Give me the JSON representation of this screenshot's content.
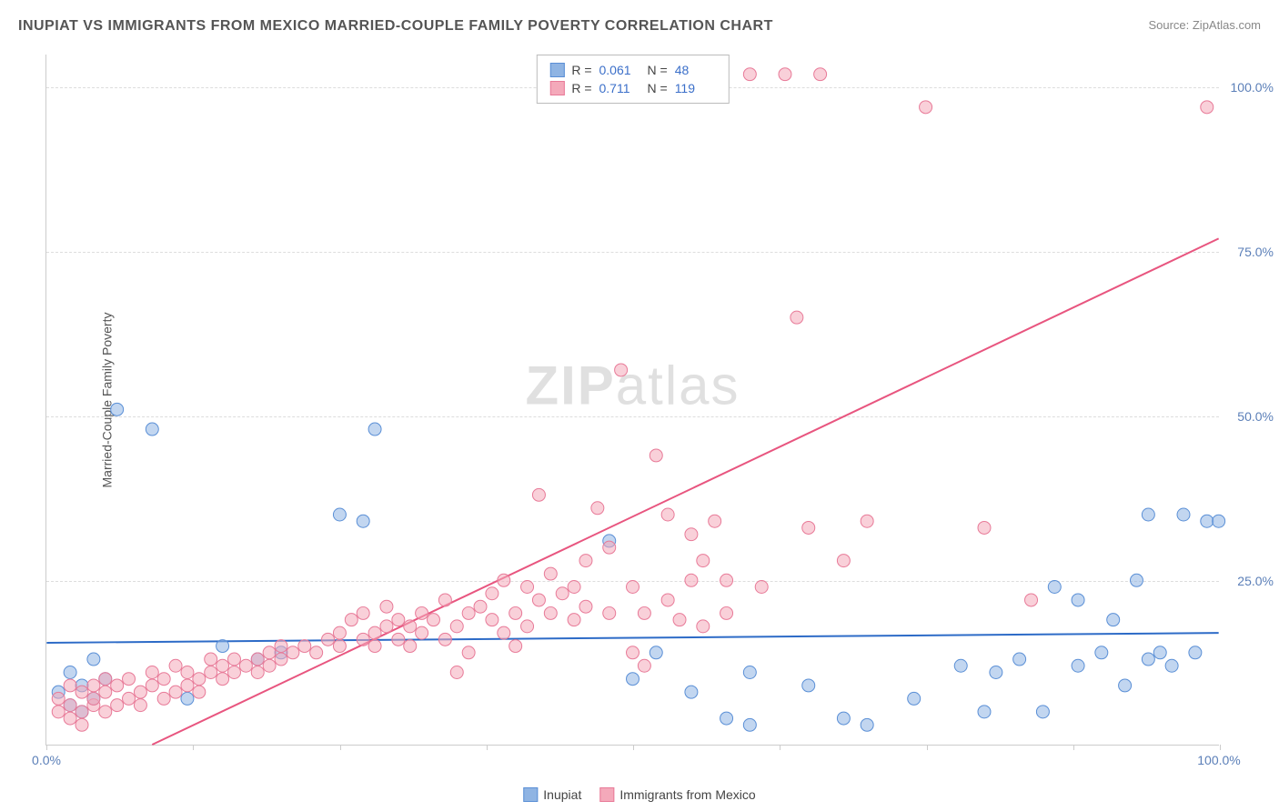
{
  "title": "INUPIAT VS IMMIGRANTS FROM MEXICO MARRIED-COUPLE FAMILY POVERTY CORRELATION CHART",
  "source_label": "Source: ZipAtlas.com",
  "watermark": "ZIPatlas",
  "y_axis_label": "Married-Couple Family Poverty",
  "chart": {
    "type": "scatter",
    "xlim": [
      0,
      100
    ],
    "ylim": [
      0,
      105
    ],
    "x_ticks": [
      0,
      12.5,
      25,
      37.5,
      50,
      62.5,
      75,
      87.5,
      100
    ],
    "x_tick_labels": {
      "0": "0.0%",
      "100": "100.0%"
    },
    "y_ticks": [
      25,
      50,
      75,
      100
    ],
    "y_tick_labels": {
      "25": "25.0%",
      "50": "50.0%",
      "75": "75.0%",
      "100": "100.0%"
    },
    "background_color": "#ffffff",
    "grid_color": "#dddddd",
    "marker_radius": 7,
    "marker_opacity": 0.55,
    "series": [
      {
        "name": "Inupiat",
        "color_fill": "#8fb4e3",
        "color_stroke": "#5a8fd6",
        "r_label": "R =",
        "r_value": "0.061",
        "n_label": "N =",
        "n_value": "48",
        "regression": {
          "x1": 0,
          "y1": 15.5,
          "x2": 100,
          "y2": 17.0,
          "color": "#2d6bc7",
          "width": 2
        },
        "points": [
          [
            1,
            8
          ],
          [
            2,
            6
          ],
          [
            2,
            11
          ],
          [
            3,
            5
          ],
          [
            3,
            9
          ],
          [
            4,
            7
          ],
          [
            4,
            13
          ],
          [
            5,
            10
          ],
          [
            6,
            51
          ],
          [
            9,
            48
          ],
          [
            12,
            7
          ],
          [
            15,
            15
          ],
          [
            18,
            13
          ],
          [
            20,
            14
          ],
          [
            25,
            35
          ],
          [
            27,
            34
          ],
          [
            28,
            48
          ],
          [
            48,
            31
          ],
          [
            50,
            10
          ],
          [
            52,
            14
          ],
          [
            55,
            8
          ],
          [
            58,
            4
          ],
          [
            60,
            3
          ],
          [
            60,
            11
          ],
          [
            65,
            9
          ],
          [
            68,
            4
          ],
          [
            70,
            3
          ],
          [
            74,
            7
          ],
          [
            78,
            12
          ],
          [
            80,
            5
          ],
          [
            81,
            11
          ],
          [
            83,
            13
          ],
          [
            85,
            5
          ],
          [
            86,
            24
          ],
          [
            88,
            12
          ],
          [
            88,
            22
          ],
          [
            90,
            14
          ],
          [
            91,
            19
          ],
          [
            92,
            9
          ],
          [
            93,
            25
          ],
          [
            94,
            13
          ],
          [
            94,
            35
          ],
          [
            95,
            14
          ],
          [
            96,
            12
          ],
          [
            97,
            35
          ],
          [
            98,
            14
          ],
          [
            99,
            34
          ],
          [
            100,
            34
          ]
        ]
      },
      {
        "name": "Immigrants from Mexico",
        "color_fill": "#f4a9ba",
        "color_stroke": "#e87a98",
        "r_label": "R =",
        "r_value": "0.711",
        "n_label": "N =",
        "n_value": "119",
        "regression": {
          "x1": 9,
          "y1": 0,
          "x2": 100,
          "y2": 77,
          "color": "#e8557f",
          "width": 2
        },
        "points": [
          [
            1,
            5
          ],
          [
            1,
            7
          ],
          [
            2,
            4
          ],
          [
            2,
            6
          ],
          [
            2,
            9
          ],
          [
            3,
            5
          ],
          [
            3,
            8
          ],
          [
            3,
            3
          ],
          [
            4,
            6
          ],
          [
            4,
            9
          ],
          [
            4,
            7
          ],
          [
            5,
            5
          ],
          [
            5,
            8
          ],
          [
            5,
            10
          ],
          [
            6,
            6
          ],
          [
            6,
            9
          ],
          [
            7,
            7
          ],
          [
            7,
            10
          ],
          [
            8,
            8
          ],
          [
            8,
            6
          ],
          [
            9,
            9
          ],
          [
            9,
            11
          ],
          [
            10,
            7
          ],
          [
            10,
            10
          ],
          [
            11,
            8
          ],
          [
            11,
            12
          ],
          [
            12,
            9
          ],
          [
            12,
            11
          ],
          [
            13,
            10
          ],
          [
            13,
            8
          ],
          [
            14,
            11
          ],
          [
            14,
            13
          ],
          [
            15,
            12
          ],
          [
            15,
            10
          ],
          [
            16,
            11
          ],
          [
            16,
            13
          ],
          [
            17,
            12
          ],
          [
            18,
            13
          ],
          [
            18,
            11
          ],
          [
            19,
            14
          ],
          [
            19,
            12
          ],
          [
            20,
            13
          ],
          [
            20,
            15
          ],
          [
            21,
            14
          ],
          [
            22,
            15
          ],
          [
            23,
            14
          ],
          [
            24,
            16
          ],
          [
            25,
            15
          ],
          [
            25,
            17
          ],
          [
            26,
            19
          ],
          [
            27,
            16
          ],
          [
            27,
            20
          ],
          [
            28,
            17
          ],
          [
            28,
            15
          ],
          [
            29,
            18
          ],
          [
            29,
            21
          ],
          [
            30,
            16
          ],
          [
            30,
            19
          ],
          [
            31,
            18
          ],
          [
            31,
            15
          ],
          [
            32,
            20
          ],
          [
            32,
            17
          ],
          [
            33,
            19
          ],
          [
            34,
            16
          ],
          [
            34,
            22
          ],
          [
            35,
            18
          ],
          [
            35,
            11
          ],
          [
            36,
            20
          ],
          [
            36,
            14
          ],
          [
            37,
            21
          ],
          [
            38,
            19
          ],
          [
            38,
            23
          ],
          [
            39,
            17
          ],
          [
            39,
            25
          ],
          [
            40,
            20
          ],
          [
            40,
            15
          ],
          [
            41,
            24
          ],
          [
            41,
            18
          ],
          [
            42,
            22
          ],
          [
            42,
            38
          ],
          [
            43,
            26
          ],
          [
            43,
            20
          ],
          [
            44,
            23
          ],
          [
            45,
            24
          ],
          [
            45,
            19
          ],
          [
            46,
            21
          ],
          [
            46,
            28
          ],
          [
            47,
            36
          ],
          [
            48,
            30
          ],
          [
            48,
            20
          ],
          [
            49,
            57
          ],
          [
            50,
            24
          ],
          [
            50,
            14
          ],
          [
            51,
            20
          ],
          [
            51,
            12
          ],
          [
            52,
            44
          ],
          [
            53,
            35
          ],
          [
            53,
            22
          ],
          [
            54,
            19
          ],
          [
            55,
            32
          ],
          [
            55,
            25
          ],
          [
            56,
            18
          ],
          [
            56,
            28
          ],
          [
            57,
            34
          ],
          [
            58,
            20
          ],
          [
            58,
            25
          ],
          [
            60,
            102
          ],
          [
            61,
            24
          ],
          [
            63,
            102
          ],
          [
            64,
            65
          ],
          [
            65,
            33
          ],
          [
            66,
            102
          ],
          [
            68,
            28
          ],
          [
            70,
            34
          ],
          [
            75,
            97
          ],
          [
            80,
            33
          ],
          [
            84,
            22
          ],
          [
            99,
            97
          ],
          [
            52,
            102
          ]
        ]
      }
    ]
  },
  "legend": {
    "inupiat_label": "Inupiat",
    "mexico_label": "Immigrants from Mexico"
  }
}
